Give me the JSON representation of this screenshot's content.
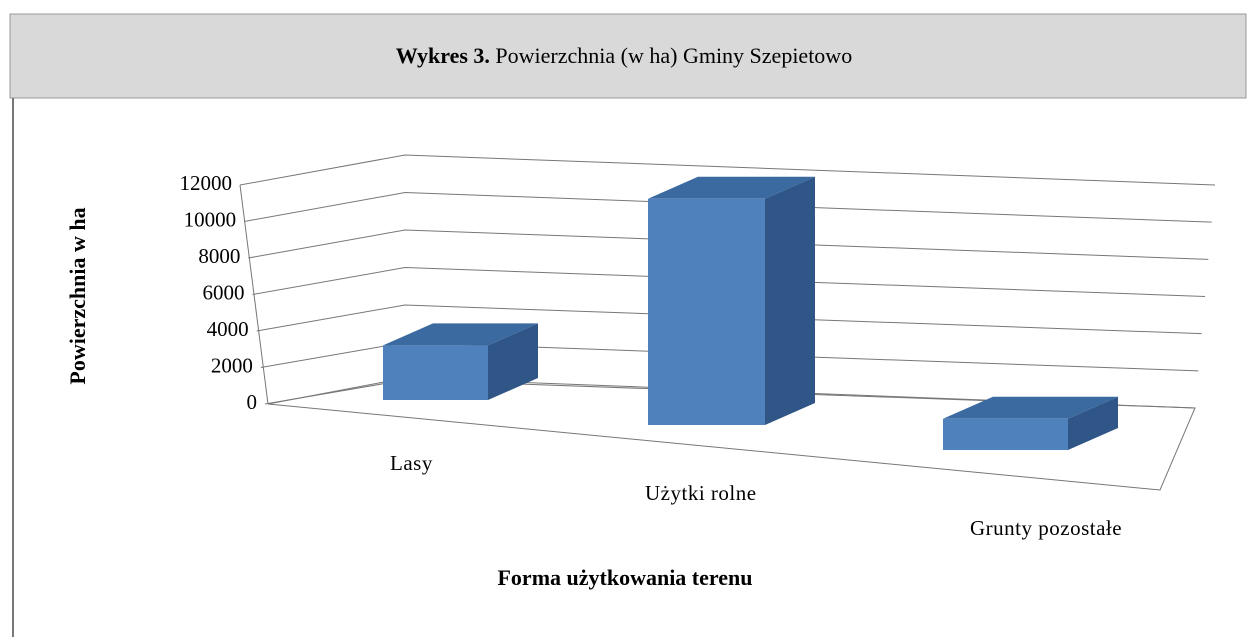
{
  "chart_data": {
    "type": "bar3d",
    "title_prefix": "Wykres 3.",
    "title": "Powierzchnia (w ha) Gminy Szepietowo",
    "y_label": "Powierzchnia w ha",
    "x_label": "Forma użytkowania terenu",
    "categories": [
      "Lasy",
      "Użytki rolne",
      "Grunty pozostałe"
    ],
    "values": [
      2800,
      11600,
      1600
    ],
    "color": "#4f81bd",
    "ylim": [
      0,
      12000
    ],
    "yticks": [
      0,
      2000,
      4000,
      6000,
      8000,
      10000,
      12000
    ],
    "grid": true
  }
}
